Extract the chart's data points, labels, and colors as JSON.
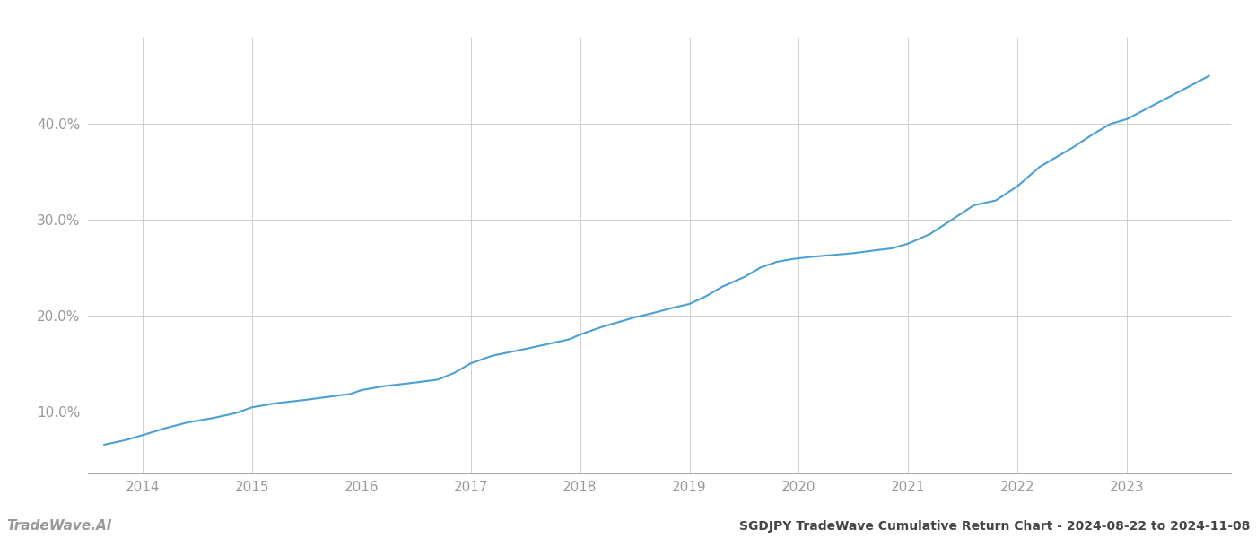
{
  "title": "SGDJPY TradeWave Cumulative Return Chart - 2024-08-22 to 2024-11-08",
  "watermark": "TradeWave.AI",
  "line_color": "#4a9fd4",
  "background_color": "#ffffff",
  "grid_color": "#d0d0d0",
  "x_years": [
    2014,
    2015,
    2016,
    2017,
    2018,
    2019,
    2020,
    2021,
    2022,
    2023
  ],
  "x_data": [
    2013.65,
    2013.85,
    2014.0,
    2014.2,
    2014.4,
    2014.65,
    2014.85,
    2015.0,
    2015.2,
    2015.5,
    2015.7,
    2015.9,
    2016.0,
    2016.2,
    2016.5,
    2016.7,
    2016.85,
    2017.0,
    2017.2,
    2017.5,
    2017.7,
    2017.9,
    2018.0,
    2018.2,
    2018.5,
    2018.65,
    2018.85,
    2019.0,
    2019.15,
    2019.3,
    2019.5,
    2019.65,
    2019.8,
    2019.95,
    2020.1,
    2020.3,
    2020.5,
    2020.7,
    2020.85,
    2021.0,
    2021.2,
    2021.4,
    2021.6,
    2021.8,
    2022.0,
    2022.2,
    2022.5,
    2022.7,
    2022.85,
    2023.0,
    2023.25,
    2023.5,
    2023.75
  ],
  "y_data": [
    6.5,
    7.0,
    7.5,
    8.2,
    8.8,
    9.3,
    9.8,
    10.4,
    10.8,
    11.2,
    11.5,
    11.8,
    12.2,
    12.6,
    13.0,
    13.3,
    14.0,
    15.0,
    15.8,
    16.5,
    17.0,
    17.5,
    18.0,
    18.8,
    19.8,
    20.2,
    20.8,
    21.2,
    22.0,
    23.0,
    24.0,
    25.0,
    25.6,
    25.9,
    26.1,
    26.3,
    26.5,
    26.8,
    27.0,
    27.5,
    28.5,
    30.0,
    31.5,
    32.0,
    33.5,
    35.5,
    37.5,
    39.0,
    40.0,
    40.5,
    42.0,
    43.5,
    45.0
  ],
  "ylim": [
    3.5,
    49.0
  ],
  "xlim": [
    2013.5,
    2023.95
  ],
  "yticks": [
    10.0,
    20.0,
    30.0,
    40.0
  ],
  "title_fontsize": 10,
  "watermark_fontsize": 11,
  "tick_color": "#999999",
  "tick_fontsize": 11,
  "spine_color": "#aaaaaa",
  "line_width": 1.5
}
